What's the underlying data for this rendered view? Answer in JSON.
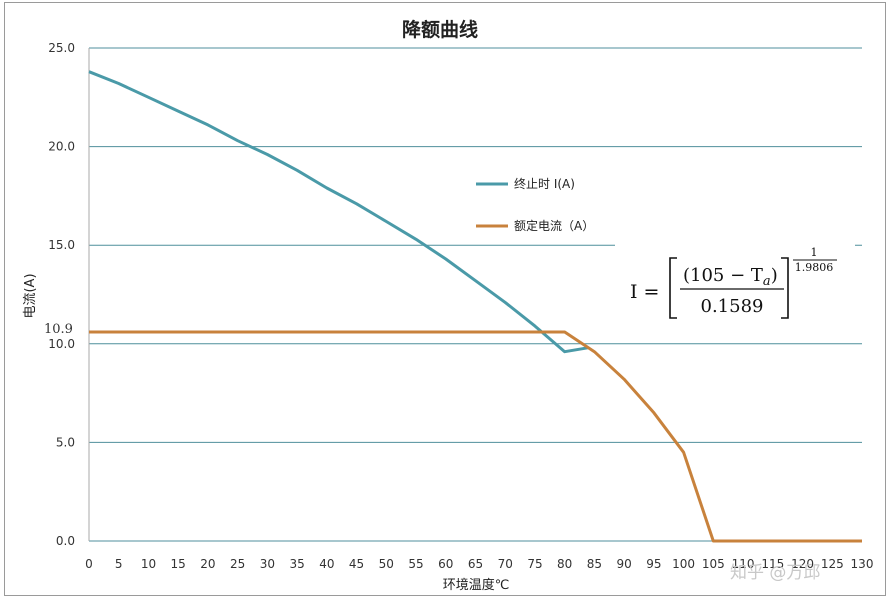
{
  "chart_data": {
    "type": "line",
    "title": "降额曲线",
    "xlabel": "环境温度℃",
    "ylabel": "电流(A)",
    "xlim": [
      0,
      130
    ],
    "ylim": [
      0,
      25
    ],
    "x_ticks": [
      "0",
      "5",
      "10",
      "15",
      "20",
      "25",
      "30",
      "35",
      "40",
      "45",
      "50",
      "55",
      "60",
      "65",
      "70",
      "75",
      "80",
      "85",
      "90",
      "95",
      "100",
      "105",
      "110",
      "115",
      "120",
      "125",
      "130"
    ],
    "y_ticks": [
      "0.0",
      "5.0",
      "10.0",
      "15.0",
      "20.0",
      "25.0"
    ],
    "grid": "horizontal",
    "legend_position": "center-right",
    "series": [
      {
        "name": "终止时 I(A)",
        "color": "#4a9aa8",
        "x": [
          0,
          5,
          10,
          15,
          20,
          25,
          30,
          35,
          40,
          45,
          50,
          55,
          60,
          65,
          70,
          75,
          80,
          84
        ],
        "y": [
          23.8,
          23.2,
          22.5,
          21.8,
          21.1,
          20.3,
          19.6,
          18.8,
          17.9,
          17.1,
          16.2,
          15.3,
          14.3,
          13.2,
          12.1,
          10.9,
          9.6,
          9.8
        ]
      },
      {
        "name": "额定电流（A）",
        "color": "#c8823c",
        "x": [
          0,
          80,
          85,
          90,
          95,
          100,
          105,
          110,
          115,
          120,
          125,
          130
        ],
        "y": [
          10.6,
          10.6,
          9.6,
          8.2,
          6.5,
          4.5,
          0,
          0,
          0,
          0,
          0,
          0
        ]
      }
    ],
    "annotations": [
      {
        "text": "10.9",
        "target": "y-axis"
      }
    ],
    "formula": {
      "lhs": "I =",
      "numerator": "(105 − T",
      "subscript": "a",
      "numerator_end": ")",
      "denominator": "0.1589",
      "exp_num": "1",
      "exp_den": "1.9806"
    }
  },
  "watermark": "知乎 @万邱"
}
